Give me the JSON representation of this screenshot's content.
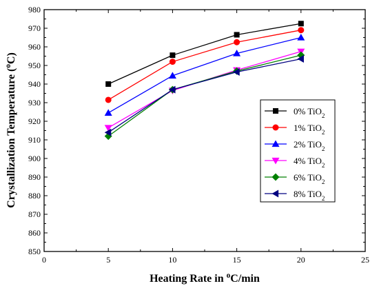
{
  "chart_data": {
    "type": "line",
    "title": "",
    "xlabel": "Heating Rate in °C/min",
    "ylabel": "Crystallization Temperature (°C)",
    "xlim": [
      0,
      25
    ],
    "ylim": [
      850,
      980
    ],
    "xticks": [
      "0",
      "5",
      "10",
      "15",
      "20",
      "25"
    ],
    "yticks": [
      "850",
      "860",
      "870",
      "880",
      "890",
      "900",
      "910",
      "920",
      "930",
      "940",
      "950",
      "960",
      "970",
      "980"
    ],
    "x": [
      5,
      10,
      15,
      20
    ],
    "legend_position": "right",
    "grid": false,
    "series": [
      {
        "name": "0% TiO2",
        "color": "#000000",
        "marker": "square",
        "values": [
          940,
          955.5,
          966.5,
          972.5
        ]
      },
      {
        "name": "1% TiO2",
        "color": "#ff0000",
        "marker": "circle",
        "values": [
          931.5,
          952,
          962.5,
          969
        ]
      },
      {
        "name": "2% TiO2",
        "color": "#0000ff",
        "marker": "triangle-up",
        "values": [
          924.5,
          944.5,
          956.5,
          965
        ]
      },
      {
        "name": "4% TiO2",
        "color": "#ff00ff",
        "marker": "triangle-down",
        "values": [
          916.5,
          936.5,
          947.5,
          957.5
        ]
      },
      {
        "name": "6% TiO2",
        "color": "#008000",
        "marker": "diamond",
        "values": [
          912,
          937,
          947,
          955.5
        ]
      },
      {
        "name": "8% TiO2",
        "color": "#000080",
        "marker": "triangle-left",
        "values": [
          914,
          937,
          946.5,
          953.5
        ]
      }
    ]
  }
}
